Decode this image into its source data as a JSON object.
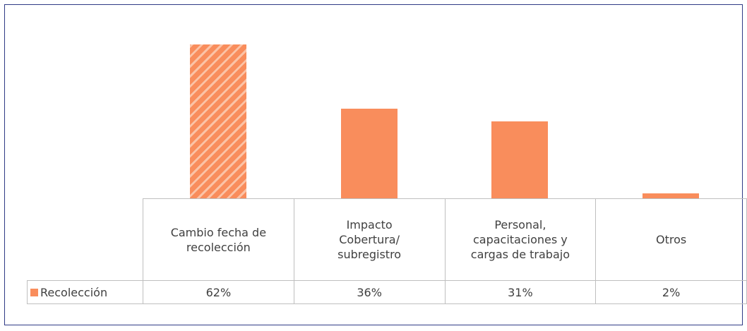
{
  "chart_data": {
    "type": "bar",
    "categories": [
      "Cambio fecha de recolección",
      "Impacto Cobertura/ subregistro",
      "Personal, capacitaciones y cargas de trabajo",
      "Otros"
    ],
    "series": [
      {
        "name": "Recolección",
        "color": "#f98d5c",
        "values": [
          62,
          36,
          31,
          2
        ],
        "value_labels": [
          "62%",
          "36%",
          "31%",
          "2%"
        ],
        "hatch": [
          true,
          false,
          false,
          false
        ]
      }
    ]
  }
}
